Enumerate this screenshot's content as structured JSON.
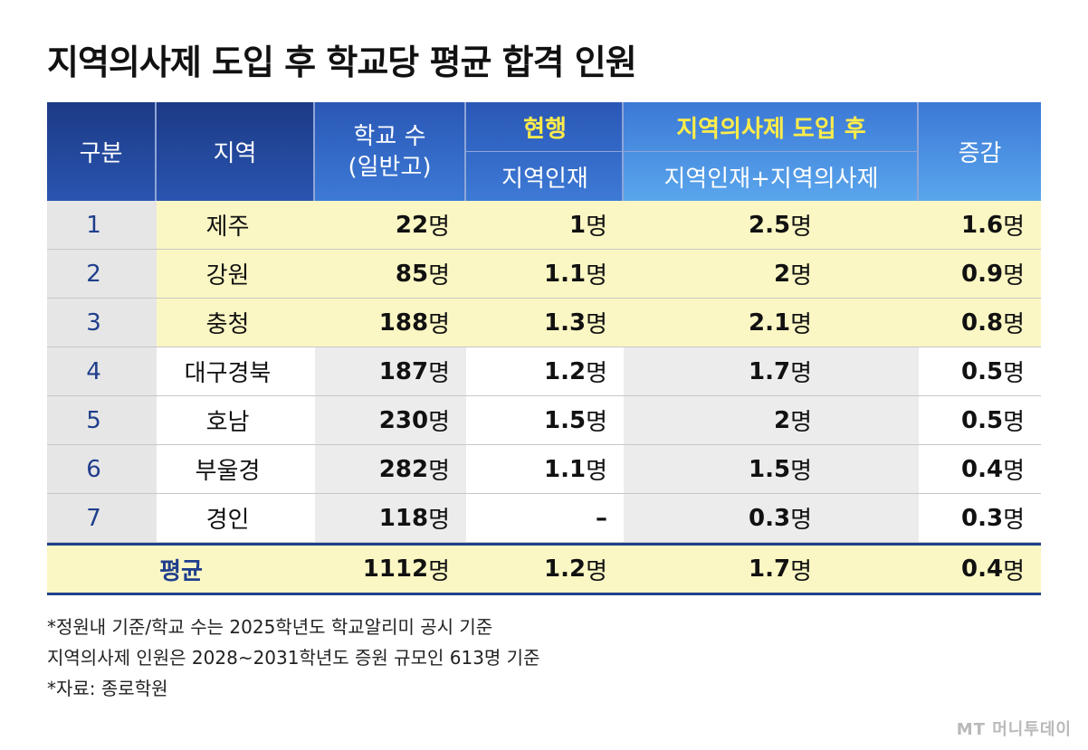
{
  "chart_data": {
    "type": "table",
    "title": "지역의사제 도입 후 학교당 평균 합격 인원",
    "header": {
      "col_index": "구분",
      "col_region": "지역",
      "col_schools_line1": "학교 수",
      "col_schools_line2": "(일반고)",
      "group_current": "현행",
      "sub_current": "지역인재",
      "group_after": "지역의사제 도입 후",
      "sub_after": "지역인재+지역의사제",
      "col_change": "증감"
    },
    "unit": "명",
    "rows": [
      {
        "idx": "1",
        "region": "제주",
        "schools": "22",
        "current": "1",
        "after": "2.5",
        "change": "1.6"
      },
      {
        "idx": "2",
        "region": "강원",
        "schools": "85",
        "current": "1.1",
        "after": "2",
        "change": "0.9"
      },
      {
        "idx": "3",
        "region": "충청",
        "schools": "188",
        "current": "1.3",
        "after": "2.1",
        "change": "0.8"
      },
      {
        "idx": "4",
        "region": "대구경북",
        "schools": "187",
        "current": "1.2",
        "after": "1.7",
        "change": "0.5"
      },
      {
        "idx": "5",
        "region": "호남",
        "schools": "230",
        "current": "1.5",
        "after": "2",
        "change": "0.5"
      },
      {
        "idx": "6",
        "region": "부울경",
        "schools": "282",
        "current": "1.1",
        "after": "1.5",
        "change": "0.4"
      },
      {
        "idx": "7",
        "region": "경인",
        "schools": "118",
        "current": "–",
        "after": "0.3",
        "change": "0.3"
      }
    ],
    "average": {
      "label": "평균",
      "schools": "1112",
      "current": "1.2",
      "after": "1.7",
      "change": "0.4"
    }
  },
  "notes": [
    "*정원내 기준/학교 수는 2025학년도 학교알리미 공시 기준",
    "지역의사제 인원은 2028~2031학년도 증원 규모인 613명 기준",
    "*자료: 종로학원"
  ],
  "logo": "MT 머니투데이",
  "colors": {
    "header_dark_blue": "#1f3e8c",
    "header_mid_blue": "#2a57b6",
    "header_light_blue": "#5aa6ec",
    "group_label_yellow": "#ffec4a",
    "highlight_yellow": "#fbf7c4",
    "row_gray": "#ececec"
  }
}
